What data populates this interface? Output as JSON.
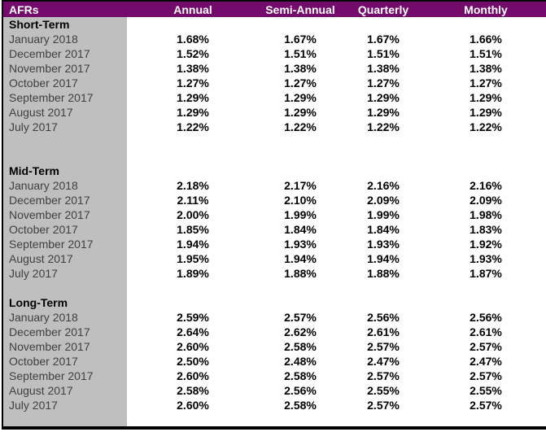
{
  "colors": {
    "header_bg": "#740B6C",
    "header_text": "#FFFFFF",
    "label_column_bg": "#BFBFBF",
    "border": "#000000",
    "month_text": "#3F3F3F",
    "value_text": "#000000"
  },
  "chart_data": {
    "type": "table",
    "title": "AFRs",
    "columns": [
      "AFRs",
      "Annual",
      "Semi-Annual",
      "Quarterly",
      "Monthly"
    ],
    "sections": [
      {
        "name": "Short-Term",
        "blank_rows_after": 2,
        "rows": [
          {
            "period": "January 2018",
            "values": [
              "1.68%",
              "1.67%",
              "1.67%",
              "1.66%"
            ]
          },
          {
            "period": "December 2017",
            "values": [
              "1.52%",
              "1.51%",
              "1.51%",
              "1.51%"
            ]
          },
          {
            "period": "November 2017",
            "values": [
              "1.38%",
              "1.38%",
              "1.38%",
              "1.38%"
            ]
          },
          {
            "period": "October 2017",
            "values": [
              "1.27%",
              "1.27%",
              "1.27%",
              "1.27%"
            ]
          },
          {
            "period": "September 2017",
            "values": [
              "1.29%",
              "1.29%",
              "1.29%",
              "1.29%"
            ]
          },
          {
            "period": "August 2017",
            "values": [
              "1.29%",
              "1.29%",
              "1.29%",
              "1.29%"
            ]
          },
          {
            "period": "July 2017",
            "values": [
              "1.22%",
              "1.22%",
              "1.22%",
              "1.22%"
            ]
          }
        ]
      },
      {
        "name": "Mid-Term",
        "blank_rows_after": 1,
        "rows": [
          {
            "period": "January 2018",
            "values": [
              "2.18%",
              "2.17%",
              "2.16%",
              "2.16%"
            ]
          },
          {
            "period": "December 2017",
            "values": [
              "2.11%",
              "2.10%",
              "2.09%",
              "2.09%"
            ]
          },
          {
            "period": "November 2017",
            "values": [
              "2.00%",
              "1.99%",
              "1.99%",
              "1.98%"
            ]
          },
          {
            "period": "October 2017",
            "values": [
              "1.85%",
              "1.84%",
              "1.84%",
              "1.83%"
            ]
          },
          {
            "period": "September 2017",
            "values": [
              "1.94%",
              "1.93%",
              "1.93%",
              "1.92%"
            ]
          },
          {
            "period": "August 2017",
            "values": [
              "1.95%",
              "1.94%",
              "1.94%",
              "1.93%"
            ]
          },
          {
            "period": "July 2017",
            "values": [
              "1.89%",
              "1.88%",
              "1.88%",
              "1.87%"
            ]
          }
        ]
      },
      {
        "name": "Long-Term",
        "blank_rows_after": 0,
        "rows": [
          {
            "period": "January 2018",
            "values": [
              "2.59%",
              "2.57%",
              "2.56%",
              "2.56%"
            ]
          },
          {
            "period": "December 2017",
            "values": [
              "2.64%",
              "2.62%",
              "2.61%",
              "2.61%"
            ]
          },
          {
            "period": "November 2017",
            "values": [
              "2.60%",
              "2.58%",
              "2.57%",
              "2.57%"
            ]
          },
          {
            "period": "October 2017",
            "values": [
              "2.50%",
              "2.48%",
              "2.47%",
              "2.47%"
            ]
          },
          {
            "period": "September 2017",
            "values": [
              "2.60%",
              "2.58%",
              "2.57%",
              "2.57%"
            ]
          },
          {
            "period": "August 2017",
            "values": [
              "2.58%",
              "2.56%",
              "2.55%",
              "2.55%"
            ]
          },
          {
            "period": "July 2017",
            "values": [
              "2.60%",
              "2.58%",
              "2.57%",
              "2.57%"
            ]
          }
        ]
      }
    ]
  }
}
